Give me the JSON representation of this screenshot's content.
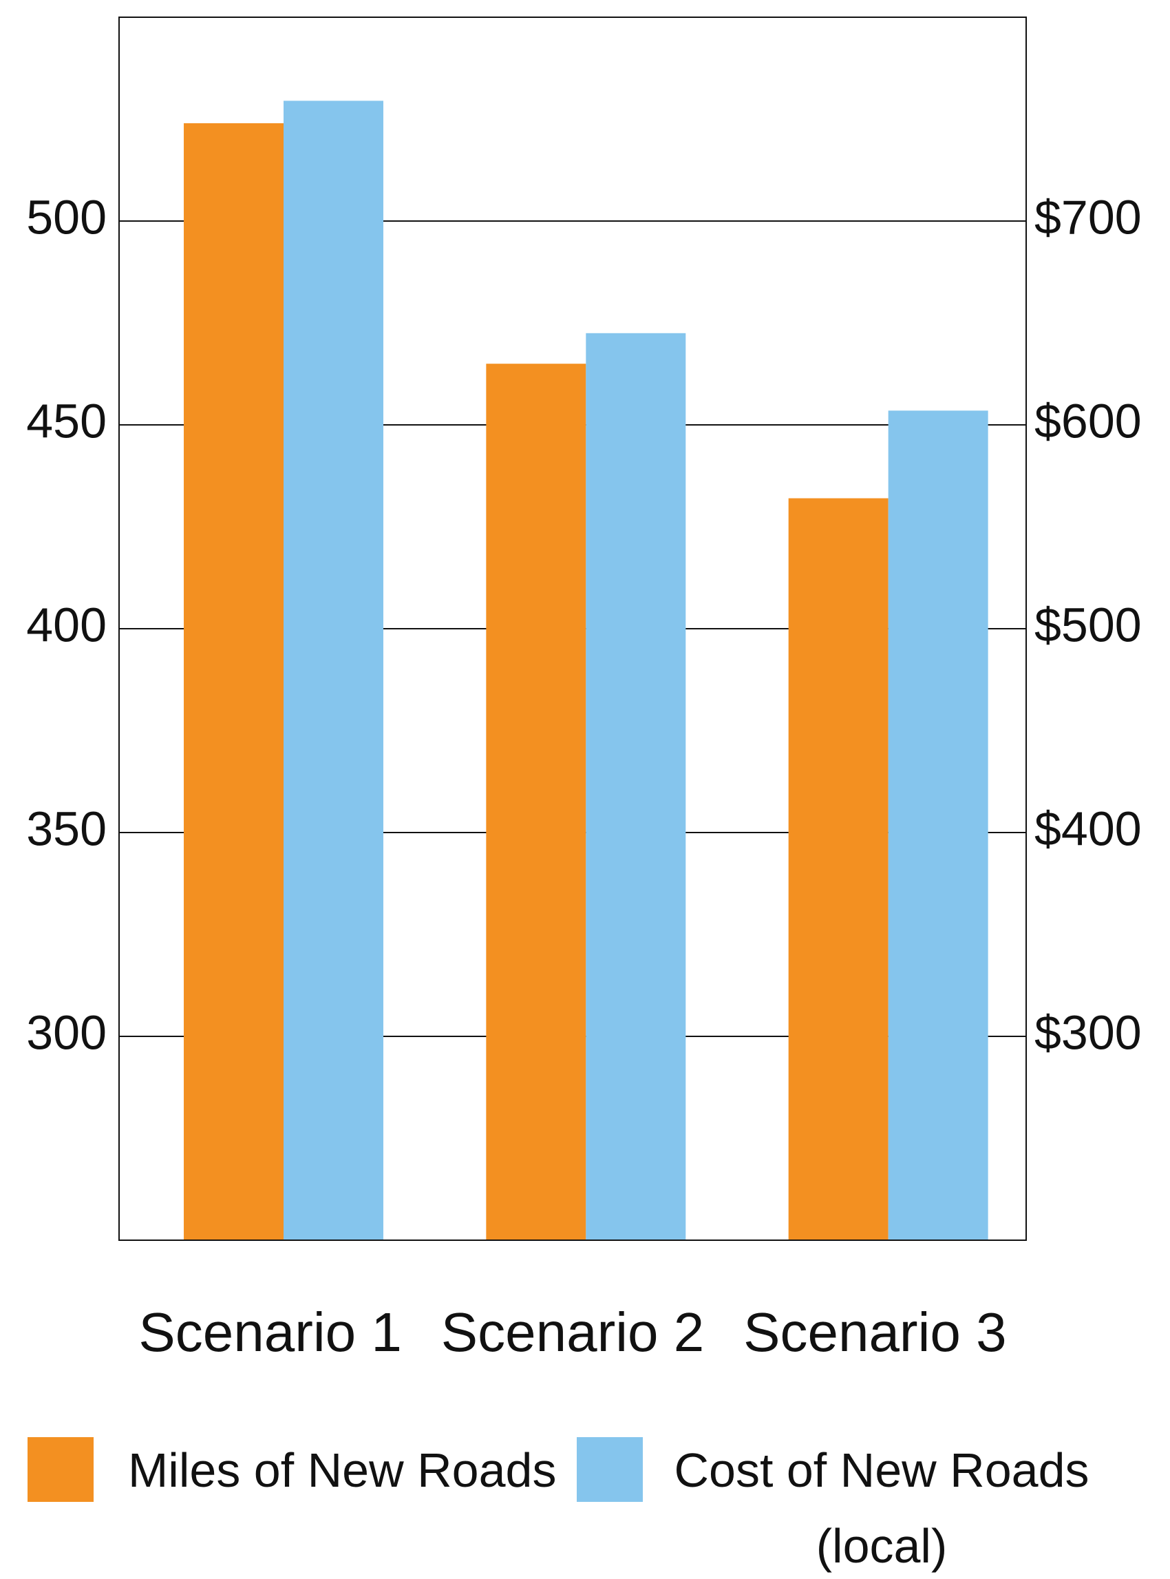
{
  "chart_data": {
    "type": "bar",
    "categories": [
      "Scenario 1",
      "Scenario 2",
      "Scenario 3"
    ],
    "series": [
      {
        "name": "Miles of New Roads",
        "color": "#f39021",
        "values": [
          524,
          465,
          432
        ]
      },
      {
        "name": "Cost of New  Roads (local)",
        "color": "#85c5ed",
        "axis": "y2",
        "values": [
          759,
          645,
          607
        ]
      }
    ],
    "ylim": [
      250,
      550
    ],
    "yticks": [
      300,
      350,
      400,
      450,
      500
    ],
    "y2lim": [
      200,
      800
    ],
    "y2ticks": [
      {
        "value": 300,
        "label": "$300"
      },
      {
        "value": 400,
        "label": "$400"
      },
      {
        "value": 500,
        "label": "$500"
      },
      {
        "value": 600,
        "label": "$600"
      },
      {
        "value": 700,
        "label": "$700"
      }
    ],
    "grid": true
  }
}
